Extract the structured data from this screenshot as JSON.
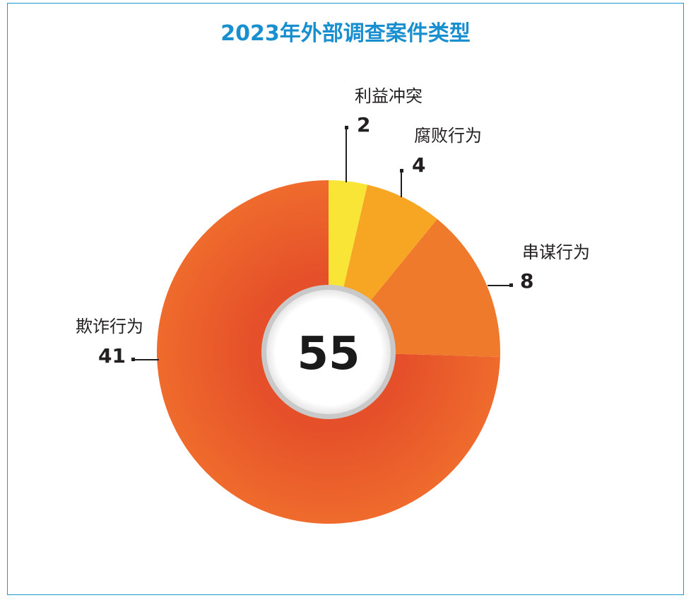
{
  "chart_data": {
    "type": "pie",
    "style": "donut",
    "title": "2023年外部调查案件类型",
    "total": "55",
    "series": [
      {
        "name": "利益冲突",
        "value": 2,
        "color": "#f8e535"
      },
      {
        "name": "腐败行为",
        "value": 4,
        "color": "#f6a623"
      },
      {
        "name": "串谋行为",
        "value": 8,
        "color": "#f07a2b"
      },
      {
        "name": "欺诈行为",
        "value": 41,
        "color": "#ea5a26"
      }
    ]
  }
}
